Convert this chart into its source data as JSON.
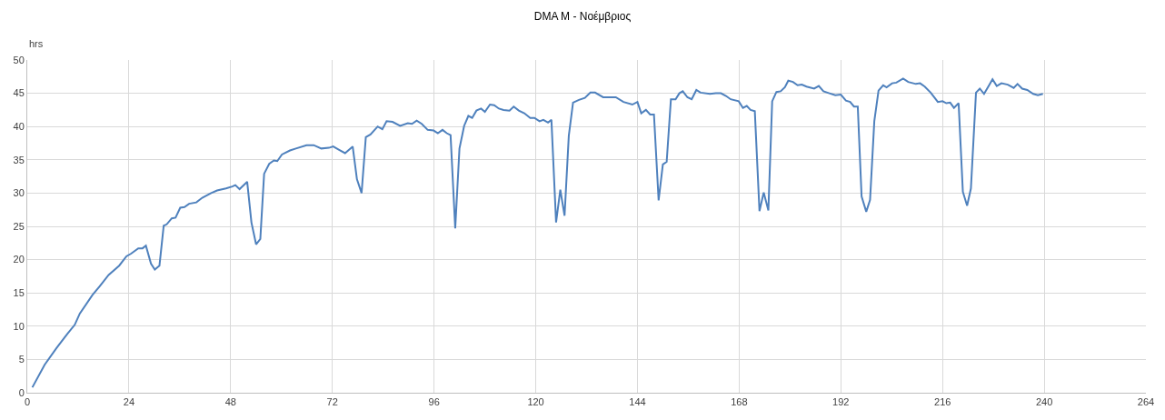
{
  "chart_data": {
    "type": "line",
    "title": "DMA M - Νοέμβριος",
    "ylabel": "hrs",
    "x": [
      1.2,
      4.1,
      6.9,
      9.4,
      11.2,
      12.4,
      15.4,
      17.1,
      19.2,
      21.7,
      23.4,
      24.5,
      26.2,
      27.2,
      28,
      29.2,
      30.1,
      31.2,
      32.2,
      32.9,
      34.1,
      35,
      36.1,
      37.1,
      38.2,
      39.9,
      41.3,
      43.4,
      44.8,
      46.9,
      48.4,
      49.1,
      50.1,
      51.9,
      52.9,
      54,
      55,
      55.9,
      57.1,
      58.2,
      59,
      60.1,
      62,
      63.4,
      65.9,
      67.6,
      69.4,
      71.2,
      72.2,
      73.6,
      75,
      76.8,
      77.8,
      78.9,
      79.9,
      81,
      82.7,
      83.8,
      84.8,
      86.2,
      88,
      89.8,
      90.8,
      91.9,
      93.1,
      94.5,
      95.9,
      96.9,
      98,
      99,
      99.9,
      101,
      102,
      103.1,
      104.1,
      105,
      106,
      107.1,
      108,
      109.2,
      110.2,
      111.3,
      112.4,
      113.8,
      114.8,
      116,
      117.3,
      118.7,
      119.7,
      120.9,
      121.8,
      122.9,
      123.7,
      124.8,
      125.8,
      126.8,
      127.8,
      128.8,
      130.2,
      131.6,
      132.9,
      134,
      135.9,
      137.3,
      138.9,
      140.7,
      142.8,
      144,
      144.9,
      146,
      147,
      147.9,
      149,
      150,
      150.9,
      151.9,
      153,
      153.9,
      154.7,
      155.8,
      156.8,
      157.9,
      158.9,
      161.1,
      162.5,
      163.7,
      164.9,
      166,
      167.9,
      168.9,
      169.8,
      170.7,
      171.7,
      172.8,
      173.8,
      174.9,
      175.8,
      176.8,
      177.8,
      178.8,
      179.6,
      180.7,
      181.8,
      182.8,
      183.9,
      185.7,
      186.8,
      187.9,
      189.3,
      190.7,
      192,
      193.2,
      194.2,
      195.1,
      196,
      196.9,
      198,
      198.9,
      199.9,
      200.9,
      202,
      202.8,
      204.1,
      205.1,
      206.7,
      207.9,
      209.7,
      210.7,
      211.8,
      213.2,
      214.9,
      216,
      216.9,
      217.8,
      218.7,
      219.8,
      220.8,
      221.8,
      222.7,
      223.9,
      224.8,
      225.8,
      226.9,
      227.8,
      228.8,
      229.9,
      231.4,
      232.8,
      233.7,
      234.8,
      236,
      237.4,
      238.5,
      239.7
    ],
    "series": [
      {
        "color": "#4f81bd",
        "values": [
          0.8,
          4.2,
          6.7,
          8.8,
          10.2,
          11.9,
          14.7,
          16,
          17.7,
          19.1,
          20.5,
          20.9,
          21.7,
          21.7,
          22.1,
          19.4,
          18.5,
          19.1,
          25.1,
          25.3,
          26.2,
          26.3,
          27.8,
          27.9,
          28.4,
          28.6,
          29.3,
          30,
          30.4,
          30.7,
          31,
          31.2,
          30.6,
          31.7,
          25.6,
          22.3,
          23.1,
          32.9,
          34.4,
          34.9,
          34.8,
          35.8,
          36.4,
          36.7,
          37.2,
          37.2,
          36.7,
          36.8,
          37,
          36.5,
          36,
          37,
          32.1,
          30,
          38.4,
          38.8,
          40,
          39.6,
          40.8,
          40.7,
          40.1,
          40.5,
          40.4,
          40.9,
          40.4,
          39.5,
          39.4,
          39,
          39.5,
          39,
          38.7,
          24.7,
          36.7,
          40.1,
          41.6,
          41.3,
          42.4,
          42.7,
          42.2,
          43.3,
          43.2,
          42.7,
          42.5,
          42.4,
          43,
          42.4,
          42,
          41.3,
          41.3,
          40.8,
          41,
          40.6,
          41,
          25.6,
          30.5,
          26.6,
          38.6,
          43.6,
          44,
          44.3,
          45.1,
          45.1,
          44.4,
          44.4,
          44.4,
          43.7,
          43.3,
          43.7,
          42,
          42.5,
          41.8,
          41.8,
          28.9,
          34.3,
          34.7,
          44.1,
          44.1,
          45,
          45.3,
          44.4,
          44.1,
          45.5,
          45.1,
          44.9,
          45,
          45,
          44.6,
          44.1,
          43.8,
          42.8,
          43.1,
          42.5,
          42.3,
          27.3,
          30.1,
          27.4,
          43.8,
          45.2,
          45.3,
          45.9,
          46.9,
          46.7,
          46.2,
          46.3,
          46,
          45.7,
          46.1,
          45.3,
          45,
          44.7,
          44.8,
          43.9,
          43.7,
          43,
          43,
          29.5,
          27.2,
          29,
          40.8,
          45.4,
          46.2,
          45.9,
          46.5,
          46.6,
          47.2,
          46.7,
          46.4,
          46.5,
          46,
          45.1,
          43.7,
          43.8,
          43.5,
          43.6,
          42.8,
          43.5,
          30.2,
          28.1,
          30.7,
          45.1,
          45.7,
          44.9,
          46.1,
          47.1,
          46.1,
          46.5,
          46.3,
          45.8,
          46.4,
          45.7,
          45.5,
          44.9,
          44.7,
          44.9
        ]
      }
    ],
    "xlim": [
      0,
      264
    ],
    "xticks": [
      0,
      24,
      48,
      72,
      96,
      120,
      144,
      168,
      192,
      216,
      240,
      264
    ],
    "ylim": [
      0,
      50
    ],
    "yticks": [
      0,
      5,
      10,
      15,
      20,
      25,
      30,
      35,
      40,
      45,
      50
    ],
    "grid": true,
    "marker": "none",
    "line_style": "solid"
  }
}
